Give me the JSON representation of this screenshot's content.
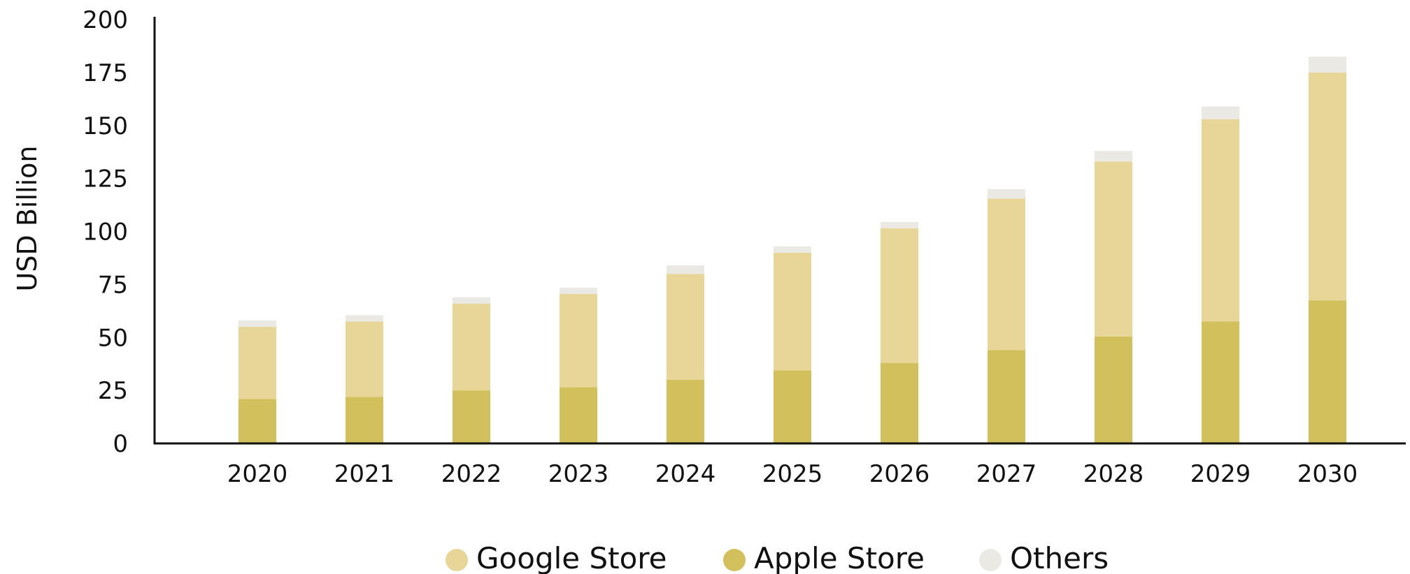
{
  "chart_data": {
    "type": "bar",
    "stacked": true,
    "title": "",
    "xlabel": "",
    "ylabel": "USD Billion",
    "ylim": [
      0,
      200
    ],
    "yticks": [
      "0",
      "25",
      "50",
      "75",
      "100",
      "125",
      "150",
      "175",
      "200"
    ],
    "categories": [
      "2020",
      "2021",
      "2022",
      "2023",
      "2024",
      "2025",
      "2026",
      "2027",
      "2028",
      "2029",
      "2030"
    ],
    "series": [
      {
        "name": "Apple Store",
        "color": "#d1c05b",
        "values": [
          21,
          22,
          25,
          26.5,
          30,
          34.5,
          38,
          44,
          50.5,
          57.5,
          67.5
        ]
      },
      {
        "name": "Google Store",
        "color": "#e8d698",
        "values": [
          34,
          35.5,
          41,
          44,
          50,
          55.5,
          63.5,
          71.5,
          82.5,
          95.5,
          107.5
        ]
      },
      {
        "name": "Others",
        "color": "#ebe9e4",
        "values": [
          3,
          3,
          3,
          3,
          4,
          3,
          3,
          4.5,
          5,
          6,
          7.5
        ]
      }
    ],
    "legend": {
      "position": "bottom",
      "items": [
        {
          "label": "Google Store",
          "color": "#e8d698"
        },
        {
          "label": "Apple Store",
          "color": "#d1c05b"
        },
        {
          "label": "Others",
          "color": "#ebe9e4"
        }
      ]
    },
    "grid": false
  }
}
